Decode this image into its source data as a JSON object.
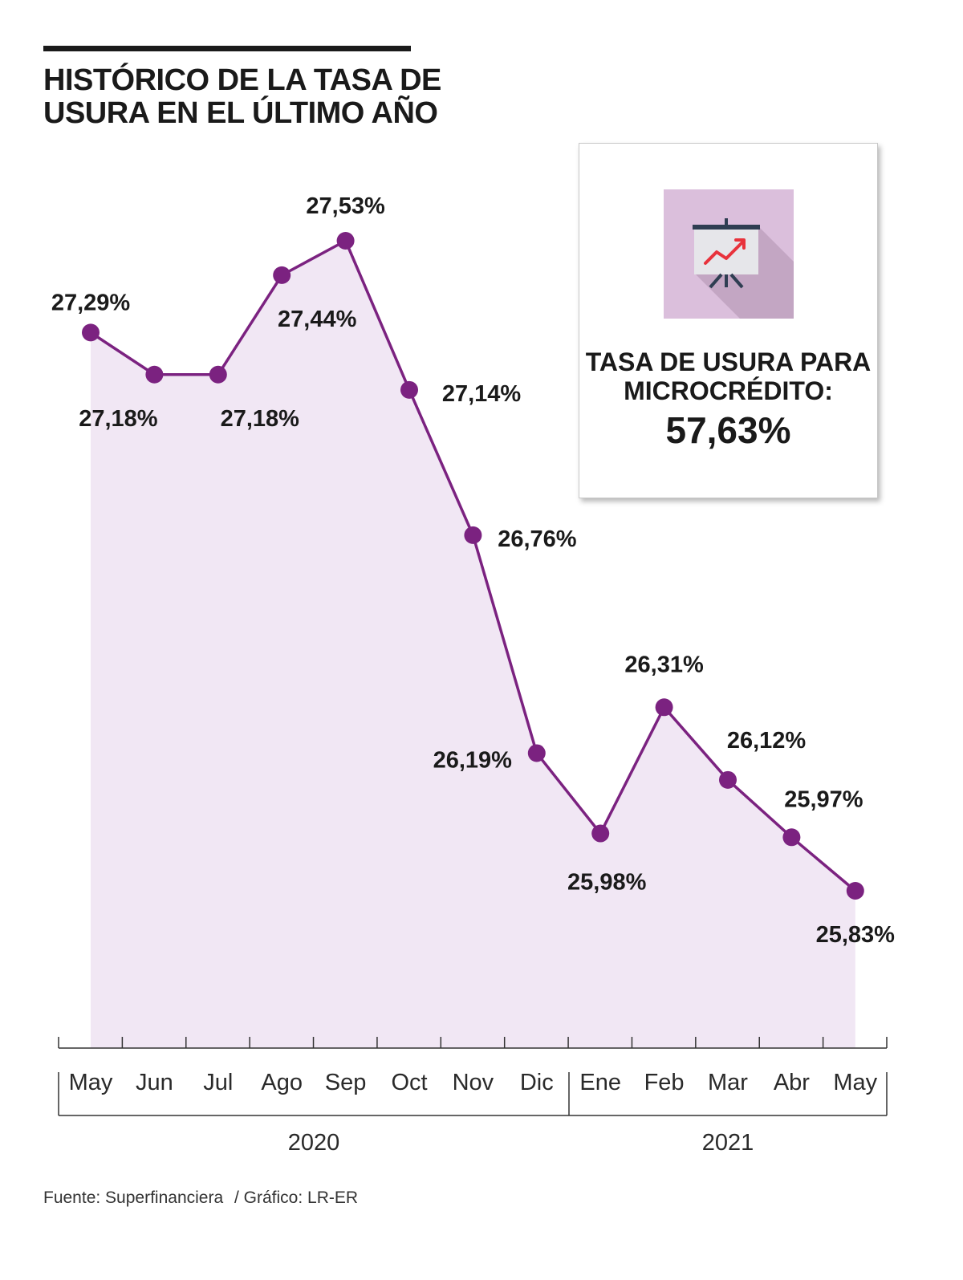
{
  "header": {
    "title_line1": "HISTÓRICO DE LA TASA DE",
    "title_line2": "USURA EN EL ÚLTIMO AÑO"
  },
  "chart_data": {
    "type": "area",
    "categories": [
      "May",
      "Jun",
      "Jul",
      "Ago",
      "Sep",
      "Oct",
      "Nov",
      "Dic",
      "Ene",
      "Feb",
      "Mar",
      "Abr",
      "May"
    ],
    "values": [
      27.29,
      27.18,
      27.18,
      27.44,
      27.53,
      27.14,
      26.76,
      26.19,
      25.98,
      26.31,
      26.12,
      25.97,
      25.83
    ],
    "value_labels": [
      "27,29%",
      "27,18%",
      "27,18%",
      "27,44%",
      "27,53%",
      "27,14%",
      "26,76%",
      "26,19%",
      "25,98%",
      "26,31%",
      "26,12%",
      "25,97%",
      "25,83%"
    ],
    "year_groups": [
      {
        "label": "2020",
        "from": 0,
        "to": 7
      },
      {
        "label": "2021",
        "from": 8,
        "to": 12
      }
    ],
    "colors": {
      "line": "#7b2280",
      "area": "#f1e7f4",
      "marker": "#7b2280"
    },
    "grid": false
  },
  "info_box": {
    "label_line1": "TASA DE USURA PARA",
    "label_line2": "MICROCRÉDITO:",
    "value": "57,63%",
    "icon": "presentation-chart-icon",
    "icon_bg": "#dbbfdc"
  },
  "footer": {
    "source": "Fuente: Superfinanciera",
    "credit": "/ Gráfico: LR-ER"
  }
}
